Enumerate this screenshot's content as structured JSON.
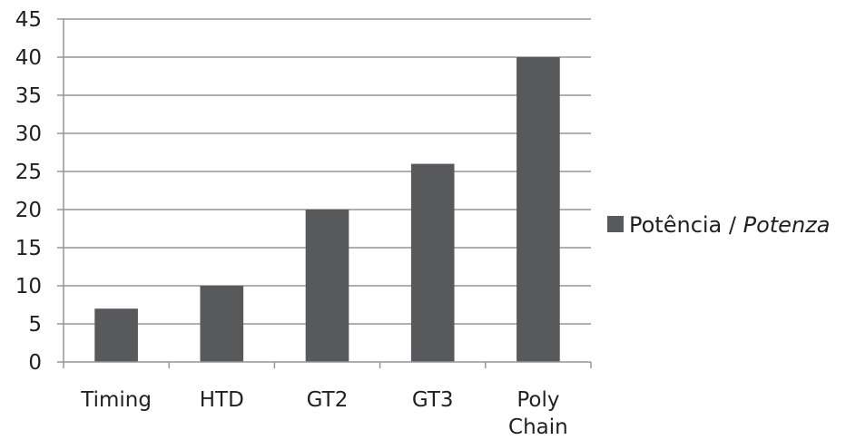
{
  "chart_data": {
    "type": "bar",
    "title": "",
    "xlabel": "",
    "ylabel": "",
    "categories": [
      [
        "Timing"
      ],
      [
        "HTD"
      ],
      [
        "GT2"
      ],
      [
        "GT3"
      ],
      [
        "Poly",
        "Chain"
      ]
    ],
    "series": [
      {
        "name": "Potência / Potenza",
        "name_parts": [
          "Potência / ",
          "Potenza"
        ],
        "values": [
          7,
          10,
          20,
          26,
          40
        ],
        "color": "#58595b"
      }
    ],
    "ylim": [
      0,
      45
    ],
    "yticks": [
      0,
      5,
      10,
      15,
      20,
      25,
      30,
      35,
      40,
      45
    ],
    "grid": true,
    "legend_position": "right"
  }
}
